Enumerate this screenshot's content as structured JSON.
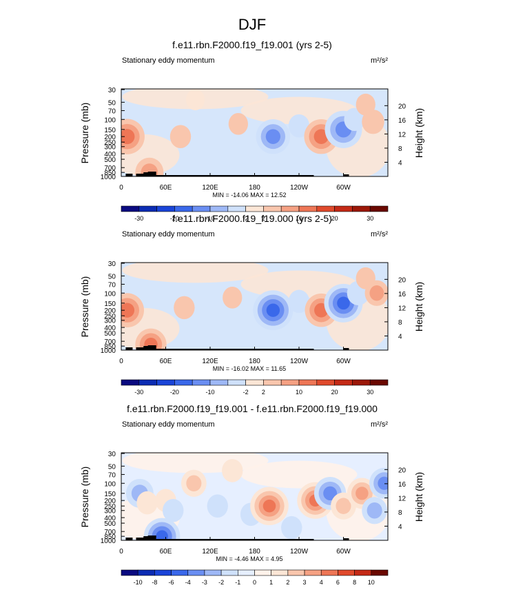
{
  "page_title": "DJF",
  "colors": {
    "main_scale": [
      "#0a0a80",
      "#0b2cb3",
      "#1a44d8",
      "#3a68ea",
      "#6a8ef2",
      "#9eb8f6",
      "#cfe1fb",
      "#fce6d6",
      "#f9c6ad",
      "#f5a183",
      "#ee7656",
      "#e04a2c",
      "#c42a16",
      "#9c1808",
      "#6a0800"
    ],
    "diff_scale": [
      "#0a0a80",
      "#0b2cb3",
      "#1a44d8",
      "#3a68ea",
      "#6a8ef2",
      "#9eb8f6",
      "#cfe1fb",
      "#e6efff",
      "#fff2ea",
      "#fce6d6",
      "#f9c6ad",
      "#f5a183",
      "#ee7656",
      "#e04a2c",
      "#c42a16",
      "#6a0800"
    ]
  },
  "chart_data": [
    {
      "id": "p1",
      "type": "contour",
      "title": "f.e11.rbn.F2000.f19_f19.001 (yrs 2-5)",
      "left_label": "Stationary eddy momentum",
      "units": "m²/s²",
      "ylabel": "Pressure (mb)",
      "y2label": "Height (km)",
      "xticks": [
        "0",
        "60E",
        "120E",
        "180",
        "120W",
        "60W"
      ],
      "pressure_ticks": [
        "30",
        "50",
        "70",
        "100",
        "150",
        "200",
        "250",
        "300",
        "400",
        "500",
        "700",
        "850",
        "1000"
      ],
      "height_ticks": [
        "20",
        "16",
        "12",
        "8",
        "4"
      ],
      "stats": "MIN = -14.06  MAX =  12.52",
      "colorbar_labels": [
        "-30",
        "-20",
        "-10",
        "-2",
        "2",
        "10",
        "20",
        "30"
      ],
      "features": [
        {
          "lon": 8,
          "pressure": 200,
          "value": 12.5
        },
        {
          "lon": 38,
          "pressure": 850,
          "value": 8
        },
        {
          "lon": 80,
          "pressure": 200,
          "value": 3
        },
        {
          "lon": 158,
          "pressure": 120,
          "value": 2
        },
        {
          "lon": 205,
          "pressure": 200,
          "value": -12
        },
        {
          "lon": 240,
          "pressure": 130,
          "value": -3
        },
        {
          "lon": 270,
          "pressure": 200,
          "value": 12
        },
        {
          "lon": 300,
          "pressure": 150,
          "value": -14.06
        },
        {
          "lon": 315,
          "pressure": 100,
          "value": -3
        },
        {
          "lon": 340,
          "pressure": 110,
          "value": 4
        },
        {
          "lon": 100,
          "pressure": 45,
          "value": 1.5
        },
        {
          "lon": 330,
          "pressure": 55,
          "value": 2
        }
      ]
    },
    {
      "id": "p2",
      "type": "contour",
      "title": "f.e11.rbn.F2000.f19_f19.000 (yrs 2-5)",
      "left_label": "Stationary eddy momentum",
      "units": "m²/s²",
      "ylabel": "Pressure (mb)",
      "y2label": "Height (km)",
      "xticks": [
        "0",
        "60E",
        "120E",
        "180",
        "120W",
        "60W"
      ],
      "pressure_ticks": [
        "30",
        "50",
        "70",
        "100",
        "150",
        "200",
        "250",
        "300",
        "400",
        "500",
        "700",
        "850",
        "1000"
      ],
      "height_ticks": [
        "20",
        "16",
        "12",
        "8",
        "4"
      ],
      "stats": "MIN = -16.02  MAX =  11.65",
      "colorbar_labels": [
        "-30",
        "-20",
        "-10",
        "-2",
        "2",
        "10",
        "20",
        "30"
      ],
      "features": [
        {
          "lon": 8,
          "pressure": 200,
          "value": 11.65
        },
        {
          "lon": 40,
          "pressure": 800,
          "value": 10
        },
        {
          "lon": 85,
          "pressure": 180,
          "value": 3
        },
        {
          "lon": 205,
          "pressure": 200,
          "value": -16.02
        },
        {
          "lon": 240,
          "pressure": 140,
          "value": -3
        },
        {
          "lon": 270,
          "pressure": 200,
          "value": 11
        },
        {
          "lon": 300,
          "pressure": 150,
          "value": -15
        },
        {
          "lon": 320,
          "pressure": 100,
          "value": -4
        },
        {
          "lon": 345,
          "pressure": 100,
          "value": 5
        },
        {
          "lon": 150,
          "pressure": 120,
          "value": 2
        },
        {
          "lon": 330,
          "pressure": 55,
          "value": 2
        }
      ]
    },
    {
      "id": "p3",
      "type": "contour",
      "title": "f.e11.rbn.F2000.f19_f19.001 - f.e11.rbn.F2000.f19_f19.000",
      "left_label": "Stationary eddy momentum",
      "units": "m²/s²",
      "ylabel": "Pressure (mb)",
      "y2label": "Height (km)",
      "xticks": [
        "0",
        "60E",
        "120E",
        "180",
        "120W",
        "60W"
      ],
      "pressure_ticks": [
        "30",
        "50",
        "70",
        "100",
        "150",
        "200",
        "250",
        "300",
        "400",
        "500",
        "700",
        "850",
        "1000"
      ],
      "height_ticks": [
        "20",
        "16",
        "12",
        "8",
        "4"
      ],
      "stats": "MIN = -4.46  MAX =  4.95",
      "colorbar_labels": [
        "-10",
        "-8",
        "-6",
        "-4",
        "-3",
        "-2",
        "-1",
        "0",
        "1",
        "2",
        "3",
        "4",
        "6",
        "8",
        "10"
      ],
      "features": [
        {
          "lon": 25,
          "pressure": 150,
          "value": -2.5
        },
        {
          "lon": 35,
          "pressure": 220,
          "value": 1
        },
        {
          "lon": 55,
          "pressure": 850,
          "value": -4.46
        },
        {
          "lon": 60,
          "pressure": 200,
          "value": 1
        },
        {
          "lon": 70,
          "pressure": 300,
          "value": -1
        },
        {
          "lon": 98,
          "pressure": 100,
          "value": 2
        },
        {
          "lon": 130,
          "pressure": 250,
          "value": -1
        },
        {
          "lon": 175,
          "pressure": 350,
          "value": -1
        },
        {
          "lon": 200,
          "pressure": 250,
          "value": 4.95
        },
        {
          "lon": 262,
          "pressure": 200,
          "value": 4.5
        },
        {
          "lon": 282,
          "pressure": 150,
          "value": -3.5
        },
        {
          "lon": 300,
          "pressure": 250,
          "value": 2
        },
        {
          "lon": 325,
          "pressure": 150,
          "value": 3
        },
        {
          "lon": 342,
          "pressure": 300,
          "value": -2
        },
        {
          "lon": 355,
          "pressure": 100,
          "value": -3
        },
        {
          "lon": 230,
          "pressure": 600,
          "value": -1
        },
        {
          "lon": 150,
          "pressure": 60,
          "value": 1
        }
      ]
    }
  ]
}
